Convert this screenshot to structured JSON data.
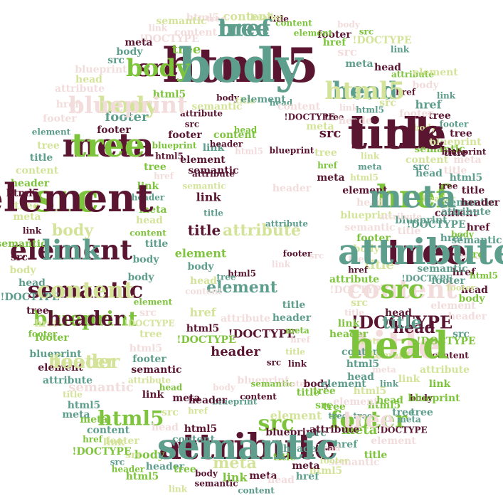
{
  "palette": {
    "maroon": "#5a1530",
    "lime": "#7dc43c",
    "teal": "#5e9e8c",
    "khaki": "#d4e39a",
    "blush": "#f2dcdc"
  },
  "words": [
    {
      "text": "html5",
      "color": "maroon"
    },
    {
      "text": "link",
      "color": "maroon"
    },
    {
      "text": "attribute",
      "color": "maroon"
    },
    {
      "text": "meta",
      "color": "maroon"
    },
    {
      "text": "src",
      "color": "lime"
    },
    {
      "text": "href",
      "color": "lime"
    },
    {
      "text": "tree",
      "color": "maroon"
    },
    {
      "text": "title",
      "color": "blush"
    },
    {
      "text": "element",
      "color": "maroon"
    },
    {
      "text": "semantic",
      "color": "maroon"
    },
    {
      "text": "head",
      "color": "teal"
    },
    {
      "text": "body",
      "color": "khaki"
    },
    {
      "text": "content",
      "color": "blush"
    },
    {
      "text": "blueprint",
      "color": "lime"
    },
    {
      "text": "footer",
      "color": "lime"
    },
    {
      "text": "src",
      "color": "maroon"
    },
    {
      "text": "tree",
      "color": "teal"
    },
    {
      "text": "header",
      "color": "khaki"
    },
    {
      "text": "!DOCTYPE",
      "color": "maroon"
    },
    {
      "text": "html5",
      "color": "lime"
    },
    {
      "text": "src",
      "color": "lime"
    },
    {
      "text": "element",
      "color": "teal"
    },
    {
      "text": "head",
      "color": "maroon"
    },
    {
      "text": "title",
      "color": "maroon"
    },
    {
      "text": "attribute",
      "color": "khaki"
    },
    {
      "text": "header",
      "color": "maroon"
    },
    {
      "text": "tree",
      "color": "lime"
    },
    {
      "text": "content",
      "color": "khaki"
    },
    {
      "text": "content",
      "color": "blush"
    },
    {
      "text": "semantic",
      "color": "blush"
    },
    {
      "text": "meta",
      "color": "khaki"
    },
    {
      "text": "footer",
      "color": "teal"
    },
    {
      "text": "!DOCTYPE",
      "color": "teal"
    },
    {
      "text": "head",
      "color": "teal"
    },
    {
      "text": "link",
      "color": "maroon"
    },
    {
      "text": "href",
      "color": "teal"
    },
    {
      "text": "blueprint",
      "color": "teal"
    },
    {
      "text": "tree",
      "color": "khaki"
    },
    {
      "text": "title",
      "color": "khaki"
    },
    {
      "text": "html5",
      "color": "lime"
    },
    {
      "text": "meta",
      "color": "teal"
    },
    {
      "text": "src",
      "color": "maroon"
    },
    {
      "text": "body",
      "color": "khaki"
    },
    {
      "text": "footer",
      "color": "maroon"
    },
    {
      "text": "header",
      "color": "blush"
    },
    {
      "text": "element",
      "color": "maroon"
    },
    {
      "text": "link",
      "color": "teal"
    },
    {
      "text": "semantic",
      "color": "maroon"
    },
    {
      "text": "body",
      "color": "teal"
    },
    {
      "text": "href",
      "color": "khaki"
    },
    {
      "text": "!DOCTYPE",
      "color": "maroon"
    },
    {
      "text": "html5",
      "color": "maroon"
    },
    {
      "text": "title",
      "color": "teal"
    },
    {
      "text": "attribute",
      "color": "teal"
    },
    {
      "text": "meta",
      "color": "lime"
    },
    {
      "text": "tree",
      "color": "maroon"
    },
    {
      "text": "src",
      "color": "khaki"
    },
    {
      "text": "head",
      "color": "blush"
    },
    {
      "text": "content",
      "color": "teal"
    },
    {
      "text": "html5",
      "color": "maroon"
    },
    {
      "text": "link",
      "color": "lime"
    },
    {
      "text": "element",
      "color": "khaki"
    },
    {
      "text": "tree",
      "color": "lime"
    },
    {
      "text": "href",
      "color": "teal"
    },
    {
      "text": "semantic",
      "color": "blush"
    },
    {
      "text": "body",
      "color": "lime"
    },
    {
      "text": "footer",
      "color": "khaki"
    },
    {
      "text": "blueprint",
      "color": "maroon"
    },
    {
      "text": "meta",
      "color": "maroon"
    },
    {
      "text": "header",
      "color": "teal"
    },
    {
      "text": "src",
      "color": "teal"
    },
    {
      "text": "title",
      "color": "lime"
    },
    {
      "text": "attribute",
      "color": "maroon"
    },
    {
      "text": "html5",
      "color": "khaki"
    },
    {
      "text": "head",
      "color": "lime"
    },
    {
      "text": "link",
      "color": "khaki"
    },
    {
      "text": "tree",
      "color": "teal"
    },
    {
      "text": "body",
      "color": "maroon"
    },
    {
      "text": "!DOCTYPE",
      "color": "lime"
    },
    {
      "text": "element",
      "color": "blush"
    },
    {
      "text": "footer",
      "color": "teal"
    },
    {
      "text": "href",
      "color": "maroon"
    },
    {
      "text": "meta",
      "color": "blush"
    },
    {
      "text": "content",
      "color": "maroon"
    },
    {
      "text": "src",
      "color": "lime"
    },
    {
      "text": "semantic",
      "color": "teal"
    },
    {
      "text": "header",
      "color": "maroon"
    },
    {
      "text": "title",
      "color": "blush"
    },
    {
      "text": "html5",
      "color": "teal"
    },
    {
      "text": "blueprint",
      "color": "khaki"
    },
    {
      "text": "tree",
      "color": "maroon"
    },
    {
      "text": "link",
      "color": "teal"
    },
    {
      "text": "body",
      "color": "blush"
    },
    {
      "text": "attribute",
      "color": "lime"
    },
    {
      "text": "head",
      "color": "maroon"
    },
    {
      "text": "meta",
      "color": "teal"
    },
    {
      "text": "src",
      "color": "blush"
    },
    {
      "text": "href",
      "color": "lime"
    },
    {
      "text": "footer",
      "color": "maroon"
    },
    {
      "text": "element",
      "color": "lime"
    },
    {
      "text": "content",
      "color": "lime"
    },
    {
      "text": "title",
      "color": "maroon"
    },
    {
      "text": "header",
      "color": "khaki"
    },
    {
      "text": "tree",
      "color": "blush"
    },
    {
      "text": "html5",
      "color": "blush"
    },
    {
      "text": "semantic",
      "color": "khaki"
    },
    {
      "text": "!DOCTYPE",
      "color": "blush"
    },
    {
      "text": "link",
      "color": "blush"
    },
    {
      "text": "meta",
      "color": "maroon"
    },
    {
      "text": "body",
      "color": "teal"
    },
    {
      "text": "src",
      "color": "teal"
    },
    {
      "text": "blueprint",
      "color": "blush"
    },
    {
      "text": "head",
      "color": "khaki"
    },
    {
      "text": "attribute",
      "color": "blush"
    },
    {
      "text": "href",
      "color": "blush"
    },
    {
      "text": "footer",
      "color": "blush"
    },
    {
      "text": "element",
      "color": "teal"
    },
    {
      "text": "tree",
      "color": "khaki"
    },
    {
      "text": "title",
      "color": "teal"
    },
    {
      "text": "content",
      "color": "khaki"
    },
    {
      "text": "header",
      "color": "lime"
    },
    {
      "text": "html5",
      "color": "maroon"
    },
    {
      "text": "meta",
      "color": "khaki"
    },
    {
      "text": "link",
      "color": "maroon"
    },
    {
      "text": "semantic",
      "color": "lime"
    },
    {
      "text": "src",
      "color": "maroon"
    },
    {
      "text": "body",
      "color": "khaki"
    },
    {
      "text": "head",
      "color": "teal"
    },
    {
      "text": "!DOCTYPE",
      "color": "teal"
    },
    {
      "text": "tree",
      "color": "maroon"
    },
    {
      "text": "href",
      "color": "khaki"
    },
    {
      "text": "footer",
      "color": "lime"
    },
    {
      "text": "blueprint",
      "color": "teal"
    },
    {
      "text": "element",
      "color": "maroon"
    },
    {
      "text": "attribute",
      "color": "teal"
    },
    {
      "text": "title",
      "color": "khaki"
    },
    {
      "text": "html5",
      "color": "teal"
    },
    {
      "text": "meta",
      "color": "lime"
    },
    {
      "text": "content",
      "color": "teal"
    },
    {
      "text": "link",
      "color": "khaki"
    },
    {
      "text": "src",
      "color": "khaki"
    },
    {
      "text": "header",
      "color": "teal"
    },
    {
      "text": "tree",
      "color": "lime"
    },
    {
      "text": "body",
      "color": "maroon"
    },
    {
      "text": "semantic",
      "color": "maroon"
    },
    {
      "text": "head",
      "color": "blush"
    },
    {
      "text": "href",
      "color": "teal"
    },
    {
      "text": "html5",
      "color": "khaki"
    },
    {
      "text": "footer",
      "color": "khaki"
    },
    {
      "text": "title",
      "color": "lime"
    },
    {
      "text": "element",
      "color": "blush"
    },
    {
      "text": "!DOCTYPE",
      "color": "maroon"
    },
    {
      "text": "meta",
      "color": "teal"
    },
    {
      "text": "tree",
      "color": "teal"
    },
    {
      "text": "blueprint",
      "color": "lime"
    },
    {
      "text": "link",
      "color": "lime"
    },
    {
      "text": "attribute",
      "color": "khaki"
    },
    {
      "text": "content",
      "color": "maroon"
    },
    {
      "text": "src",
      "color": "teal"
    },
    {
      "text": "header",
      "color": "blush"
    },
    {
      "text": "body",
      "color": "lime"
    },
    {
      "text": "head",
      "color": "maroon"
    },
    {
      "text": "html5",
      "color": "lime"
    },
    {
      "text": "href",
      "color": "maroon"
    },
    {
      "text": "semantic",
      "color": "teal"
    },
    {
      "text": "title",
      "color": "maroon"
    },
    {
      "text": "meta",
      "color": "blush"
    },
    {
      "text": "tree",
      "color": "maroon"
    },
    {
      "text": "footer",
      "color": "teal"
    },
    {
      "text": "element",
      "color": "khaki"
    },
    {
      "text": "link",
      "color": "teal"
    },
    {
      "text": "!DOCTYPE",
      "color": "khaki"
    },
    {
      "text": "src",
      "color": "lime"
    },
    {
      "text": "body",
      "color": "blush"
    },
    {
      "text": "attribute",
      "color": "maroon"
    },
    {
      "text": "content",
      "color": "lime"
    },
    {
      "text": "head",
      "color": "lime"
    },
    {
      "text": "header",
      "color": "maroon"
    },
    {
      "text": "html5",
      "color": "blush"
    },
    {
      "text": "blueprint",
      "color": "maroon"
    },
    {
      "text": "tree",
      "color": "khaki"
    },
    {
      "text": "href",
      "color": "lime"
    },
    {
      "text": "meta",
      "color": "maroon"
    },
    {
      "text": "title",
      "color": "teal"
    },
    {
      "text": "semantic",
      "color": "khaki"
    },
    {
      "text": "link",
      "color": "blush"
    },
    {
      "text": "footer",
      "color": "maroon"
    },
    {
      "text": "src",
      "color": "blush"
    },
    {
      "text": "element",
      "color": "lime"
    },
    {
      "text": "body",
      "color": "teal"
    },
    {
      "text": "head",
      "color": "khaki"
    },
    {
      "text": "content",
      "color": "blush"
    },
    {
      "text": "tree",
      "color": "teal"
    },
    {
      "text": "html5",
      "color": "maroon"
    },
    {
      "text": "!DOCTYPE",
      "color": "lime"
    },
    {
      "text": "attribute",
      "color": "blush"
    },
    {
      "text": "header",
      "color": "teal"
    },
    {
      "text": "meta",
      "color": "lime"
    },
    {
      "text": "href",
      "color": "blush"
    },
    {
      "text": "title",
      "color": "khaki"
    },
    {
      "text": "link",
      "color": "maroon"
    },
    {
      "text": "src",
      "color": "maroon"
    },
    {
      "text": "blueprint",
      "color": "blush"
    },
    {
      "text": "semantic",
      "color": "lime"
    },
    {
      "text": "footer",
      "color": "blush"
    },
    {
      "text": "body",
      "color": "maroon"
    },
    {
      "text": "tree",
      "color": "lime"
    },
    {
      "text": "element",
      "color": "teal"
    },
    {
      "text": "head",
      "color": "teal"
    },
    {
      "text": "html5",
      "color": "teal"
    },
    {
      "text": "content",
      "color": "teal"
    },
    {
      "text": "meta",
      "color": "khaki"
    },
    {
      "text": "header",
      "color": "lime"
    },
    {
      "text": "link",
      "color": "lime"
    },
    {
      "text": "title",
      "color": "blush"
    },
    {
      "text": "src",
      "color": "khaki"
    },
    {
      "text": "!DOCTYPE",
      "color": "blush"
    },
    {
      "text": "attribute",
      "color": "lime"
    },
    {
      "text": "href",
      "color": "maroon"
    },
    {
      "text": "tree",
      "color": "blush"
    },
    {
      "text": "body",
      "color": "khaki"
    },
    {
      "text": "footer",
      "color": "lime"
    },
    {
      "text": "semantic",
      "color": "blush"
    },
    {
      "text": "blueprint",
      "color": "khaki"
    },
    {
      "text": "head",
      "color": "blush"
    },
    {
      "text": "element",
      "color": "maroon"
    },
    {
      "text": "html5",
      "color": "khaki"
    },
    {
      "text": "meta",
      "color": "teal"
    },
    {
      "text": "link",
      "color": "khaki"
    },
    {
      "text": "content",
      "color": "khaki"
    },
    {
      "text": "title",
      "color": "maroon"
    },
    {
      "text": "src",
      "color": "teal"
    },
    {
      "text": "tree",
      "color": "maroon"
    },
    {
      "text": "header",
      "color": "khaki"
    },
    {
      "text": "href",
      "color": "teal"
    },
    {
      "text": "body",
      "color": "lime"
    },
    {
      "text": "attribute",
      "color": "teal"
    },
    {
      "text": "!DOCTYPE",
      "color": "teal"
    },
    {
      "text": "semantic",
      "color": "teal"
    },
    {
      "text": "footer",
      "color": "khaki"
    },
    {
      "text": "head",
      "color": "maroon"
    },
    {
      "text": "meta",
      "color": "blush"
    },
    {
      "text": "link",
      "color": "teal"
    },
    {
      "text": "html5",
      "color": "lime"
    },
    {
      "text": "element",
      "color": "blush"
    },
    {
      "text": "tree",
      "color": "teal"
    },
    {
      "text": "src",
      "color": "lime"
    },
    {
      "text": "title",
      "color": "lime"
    },
    {
      "text": "content",
      "color": "maroon"
    },
    {
      "text": "blueprint",
      "color": "teal"
    },
    {
      "text": "body",
      "color": "blush"
    },
    {
      "text": "header",
      "color": "maroon"
    },
    {
      "text": "href",
      "color": "khaki"
    },
    {
      "text": "meta",
      "color": "maroon"
    },
    {
      "text": "head",
      "color": "lime"
    },
    {
      "text": "link",
      "color": "maroon"
    },
    {
      "text": "attribute",
      "color": "khaki"
    },
    {
      "text": "semantic",
      "color": "maroon"
    },
    {
      "text": "footer",
      "color": "teal"
    },
    {
      "text": "html5",
      "color": "blush"
    },
    {
      "text": "tree",
      "color": "khaki"
    },
    {
      "text": "!DOCTYPE",
      "color": "khaki"
    },
    {
      "text": "src",
      "color": "blush"
    },
    {
      "text": "element",
      "color": "lime"
    },
    {
      "text": "body",
      "color": "teal"
    },
    {
      "text": "title",
      "color": "teal"
    },
    {
      "text": "content",
      "color": "lime"
    },
    {
      "text": "head",
      "color": "khaki"
    },
    {
      "text": "meta",
      "color": "lime"
    },
    {
      "text": "header",
      "color": "teal"
    },
    {
      "text": "link",
      "color": "lime"
    },
    {
      "text": "href",
      "color": "blush"
    },
    {
      "text": "tree",
      "color": "lime"
    },
    {
      "text": "html5",
      "color": "maroon"
    },
    {
      "text": "blueprint",
      "color": "lime"
    },
    {
      "text": "footer",
      "color": "maroon"
    },
    {
      "text": "src",
      "color": "maroon"
    },
    {
      "text": "attribute",
      "color": "maroon"
    },
    {
      "text": "semantic",
      "color": "khaki"
    },
    {
      "text": "body",
      "color": "maroon"
    },
    {
      "text": "title",
      "color": "khaki"
    },
    {
      "text": "element",
      "color": "teal"
    },
    {
      "text": "head",
      "color": "teal"
    },
    {
      "text": "content",
      "color": "blush"
    },
    {
      "text": "!DOCTYPE",
      "color": "maroon"
    },
    {
      "text": "meta",
      "color": "khaki"
    },
    {
      "text": "tree",
      "color": "maroon"
    },
    {
      "text": "link",
      "color": "blush"
    },
    {
      "text": "header",
      "color": "blush"
    },
    {
      "text": "html5",
      "color": "teal"
    },
    {
      "text": "src",
      "color": "khaki"
    },
    {
      "text": "href",
      "color": "maroon"
    },
    {
      "text": "footer",
      "color": "blush"
    },
    {
      "text": "body",
      "color": "khaki"
    },
    {
      "text": "semantic",
      "color": "lime"
    },
    {
      "text": "blueprint",
      "color": "maroon"
    },
    {
      "text": "title",
      "color": "blush"
    },
    {
      "text": "attribute",
      "color": "blush"
    },
    {
      "text": "element",
      "color": "khaki"
    },
    {
      "text": "tree",
      "color": "teal"
    },
    {
      "text": "head",
      "color": "blush"
    },
    {
      "text": "meta",
      "color": "maroon"
    },
    {
      "text": "content",
      "color": "teal"
    },
    {
      "text": "link",
      "color": "khaki"
    },
    {
      "text": "html5",
      "color": "lime"
    },
    {
      "text": "header",
      "color": "lime"
    },
    {
      "text": "src",
      "color": "teal"
    },
    {
      "text": "!DOCTYPE",
      "color": "lime"
    },
    {
      "text": "href",
      "color": "lime"
    },
    {
      "text": "footer",
      "color": "lime"
    },
    {
      "text": "body",
      "color": "teal"
    },
    {
      "text": "title",
      "color": "maroon"
    },
    {
      "text": "semantic",
      "color": "teal"
    },
    {
      "text": "tree",
      "color": "lime"
    },
    {
      "text": "element",
      "color": "maroon"
    },
    {
      "text": "meta",
      "color": "teal"
    },
    {
      "text": "attribute",
      "color": "teal"
    },
    {
      "text": "head",
      "color": "lime"
    },
    {
      "text": "link",
      "color": "teal"
    },
    {
      "text": "content",
      "color": "khaki"
    },
    {
      "text": "html5",
      "color": "khaki"
    },
    {
      "text": "blueprint",
      "color": "blush"
    },
    {
      "text": "src",
      "color": "lime"
    },
    {
      "text": "header",
      "color": "maroon"
    },
    {
      "text": "tree",
      "color": "blush"
    },
    {
      "text": "body",
      "color": "lime"
    },
    {
      "text": "href",
      "color": "teal"
    },
    {
      "text": "footer",
      "color": "khaki"
    },
    {
      "text": "title",
      "color": "teal"
    }
  ]
}
